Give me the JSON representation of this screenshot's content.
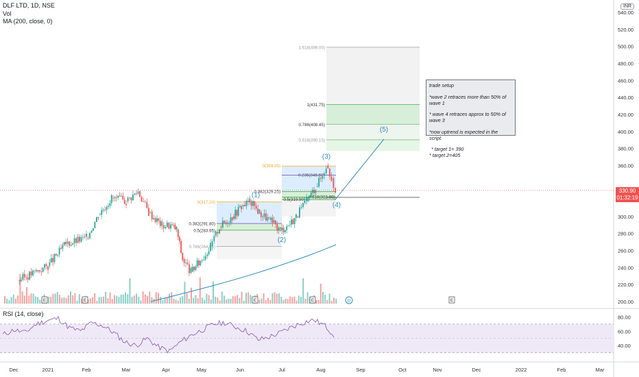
{
  "legend": {
    "symbol": "DLF LTD, 1D, NSE",
    "vol": "Vol",
    "ma": "MA (200, close, 0)"
  },
  "rsi_legend": "RSI (14, close)",
  "inr_badge": "INR",
  "last_price": "330.90",
  "countdown": "01:32:19",
  "note": {
    "title": "trade setup",
    "line1": "*wave 2 retraces more than 50% of wave 1",
    "line2": "* wave 4 retraces approx to 50% of wave 3",
    "line3": "*now uptrend is expected in the script.",
    "line4": "* target 1= 390",
    "line5": "* target 2=405"
  },
  "colors": {
    "up": "#26a69a",
    "down": "#ef5350",
    "ma": "#2e8bc0",
    "rsi": "#8e63b5",
    "fib_blue": "#bbdefb",
    "fib_green": "#c8e6c9",
    "fib_grey": "#e0e0e0"
  },
  "chart_data": {
    "type": "candlestick",
    "y_axis": {
      "min": 200,
      "max": 540,
      "step": 20,
      "labels": [
        "200.00",
        "220.00",
        "240.00",
        "260.00",
        "280.00",
        "300.00",
        "320.00",
        "340.00",
        "360.00",
        "380.00",
        "400.00",
        "420.00",
        "440.00",
        "460.00",
        "480.00",
        "500.00",
        "520.00",
        "540.00"
      ]
    },
    "x_axis": {
      "labels": [
        "Dec",
        "2021",
        "Feb",
        "Mar",
        "Apr",
        "May",
        "Jun",
        "Jul",
        "Aug",
        "Sep",
        "Oct",
        "Nov",
        "Dec",
        "2022",
        "Feb",
        "Mar"
      ]
    },
    "rsi_axis": {
      "labels": [
        "40.00",
        "60.00",
        "80.00"
      ],
      "upper": 70,
      "lower": 30
    },
    "price_series": [
      {
        "d": "2020-12",
        "c": 225
      },
      {
        "d": "2021-01-01",
        "c": 242
      },
      {
        "d": "2021-01-15",
        "c": 268
      },
      {
        "d": "2021-02-01",
        "c": 275
      },
      {
        "d": "2021-02-10",
        "c": 302
      },
      {
        "d": "2021-02-20",
        "c": 322
      },
      {
        "d": "2021-03-01",
        "c": 318
      },
      {
        "d": "2021-03-10",
        "c": 330
      },
      {
        "d": "2021-03-18",
        "c": 305
      },
      {
        "d": "2021-03-28",
        "c": 290
      },
      {
        "d": "2021-04-05",
        "c": 290
      },
      {
        "d": "2021-04-10",
        "c": 285
      },
      {
        "d": "2021-04-15",
        "c": 250
      },
      {
        "d": "2021-04-22",
        "c": 235
      },
      {
        "d": "2021-04-30",
        "c": 248
      },
      {
        "d": "2021-05-08",
        "c": 265
      },
      {
        "d": "2021-05-15",
        "c": 288
      },
      {
        "d": "2021-05-25",
        "c": 300
      },
      {
        "d": "2021-06-02",
        "c": 312
      },
      {
        "d": "2021-06-08",
        "c": 318
      },
      {
        "d": "2021-06-15",
        "c": 305
      },
      {
        "d": "2021-06-22",
        "c": 296
      },
      {
        "d": "2021-06-30",
        "c": 284
      },
      {
        "d": "2021-07-06",
        "c": 290
      },
      {
        "d": "2021-07-12",
        "c": 300
      },
      {
        "d": "2021-07-20",
        "c": 318
      },
      {
        "d": "2021-07-27",
        "c": 335
      },
      {
        "d": "2021-08-02",
        "c": 348
      },
      {
        "d": "2021-08-05",
        "c": 360
      },
      {
        "d": "2021-08-09",
        "c": 345
      },
      {
        "d": "2021-08-12",
        "c": 330.9
      }
    ],
    "fib_levels_wave1": [
      {
        "label": "0(317.20)",
        "price": 317.2
      },
      {
        "label": "0.382(291.80)",
        "price": 291.8
      },
      {
        "label": "0.5(283.95)",
        "price": 283.95
      },
      {
        "label": "0.786(264.95)",
        "price": 264.95
      }
    ],
    "fib_levels_wave3": [
      {
        "label": "0(359.35)",
        "price": 359.35
      },
      {
        "label": "0.236(348.60)",
        "price": 348.6
      },
      {
        "label": "0.382(329.25)",
        "price": 329.25
      },
      {
        "label": "0.5(319.90)",
        "price": 319.9
      },
      {
        "label": "0.618(322.90)",
        "price": 322.9
      }
    ],
    "fib_extension": [
      {
        "label": "1.618(499.00)",
        "price": 499.0
      },
      {
        "label": "1(431.75)",
        "price": 431.75
      },
      {
        "label": "0.786(408.45)",
        "price": 408.45
      },
      {
        "label": "0.618(390.15)",
        "price": 390.15
      }
    ],
    "wave_labels": [
      "(1)",
      "(2)",
      "(3)",
      "(4)",
      "(5)"
    ],
    "event_markers": [
      "E",
      "E",
      "E",
      "E",
      "D",
      "E"
    ],
    "rsi_values": [
      55,
      62,
      58,
      70,
      75,
      78,
      65,
      60,
      72,
      68,
      58,
      45,
      40,
      50,
      38,
      32,
      45,
      55,
      62,
      70,
      72,
      66,
      60,
      48,
      52,
      58,
      66,
      72,
      76,
      68,
      52
    ]
  }
}
